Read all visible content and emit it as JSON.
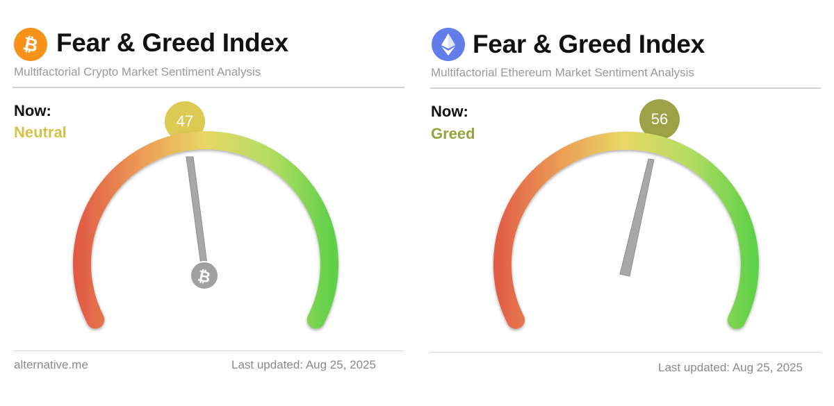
{
  "cards": [
    {
      "title": "Fear & Greed Index",
      "subtitle": "Multifactorial Crypto Market Sentiment Analysis",
      "now_label": "Now:",
      "now_value": "Neutral",
      "index_value": 47,
      "index_text": "47",
      "logo_icon": "bitcoin-icon",
      "value_color": "#d4c24a",
      "footer_source": "alternative.me",
      "footer_updated": "Last updated: Aug 25, 2025"
    },
    {
      "title": "Fear & Greed Index",
      "subtitle": "Multifactorial Ethereum Market Sentiment Analysis",
      "now_label": "Now:",
      "now_value": "Greed",
      "index_value": 56,
      "index_text": "56",
      "logo_icon": "ethereum-icon",
      "value_color": "#9aa23e",
      "footer_updated": "Last updated: Aug 25, 2025"
    }
  ],
  "colors": {
    "bitcoin": "#f7931a",
    "ethereum": "#627eea",
    "gauge_fear": "#e05a45",
    "gauge_neutral": "#e8d864",
    "gauge_greed": "#5fd048",
    "needle": "#a8a8a8"
  }
}
